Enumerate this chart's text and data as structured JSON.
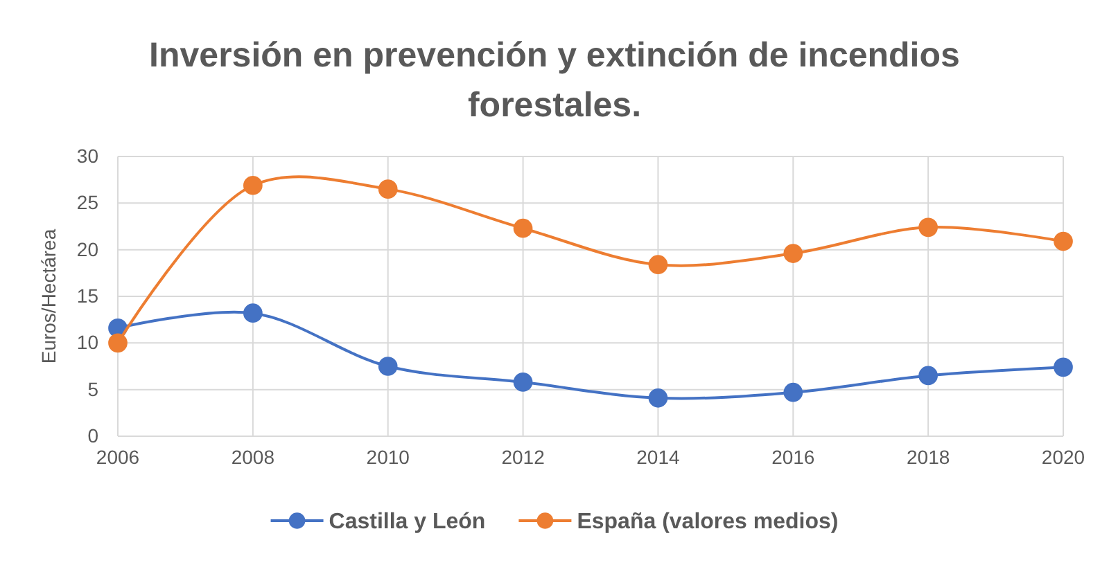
{
  "chart_data": {
    "type": "line",
    "title": "Inversión en prevención y extinción de incendios forestales.",
    "ylabel": "Euros/Hectárea",
    "x": [
      2006,
      2008,
      2010,
      2012,
      2014,
      2016,
      2018,
      2020
    ],
    "series": [
      {
        "name": "Castilla y León",
        "color": "#4472c4",
        "values": [
          11.6,
          13.2,
          7.5,
          5.8,
          4.1,
          4.7,
          6.5,
          7.4
        ]
      },
      {
        "name": "España (valores medios)",
        "color": "#ed7d31",
        "values": [
          10.0,
          26.9,
          26.5,
          22.3,
          18.4,
          19.6,
          22.4,
          20.9
        ]
      }
    ],
    "xlim": [
      2006,
      2020
    ],
    "xticks": [
      2006,
      2008,
      2010,
      2012,
      2014,
      2016,
      2018,
      2020
    ],
    "ylim": [
      0,
      30
    ],
    "yticks": [
      0,
      5,
      10,
      15,
      20,
      25,
      30
    ],
    "grid": true,
    "legend": "bottom",
    "marker": "circle",
    "line_style": "solid"
  }
}
